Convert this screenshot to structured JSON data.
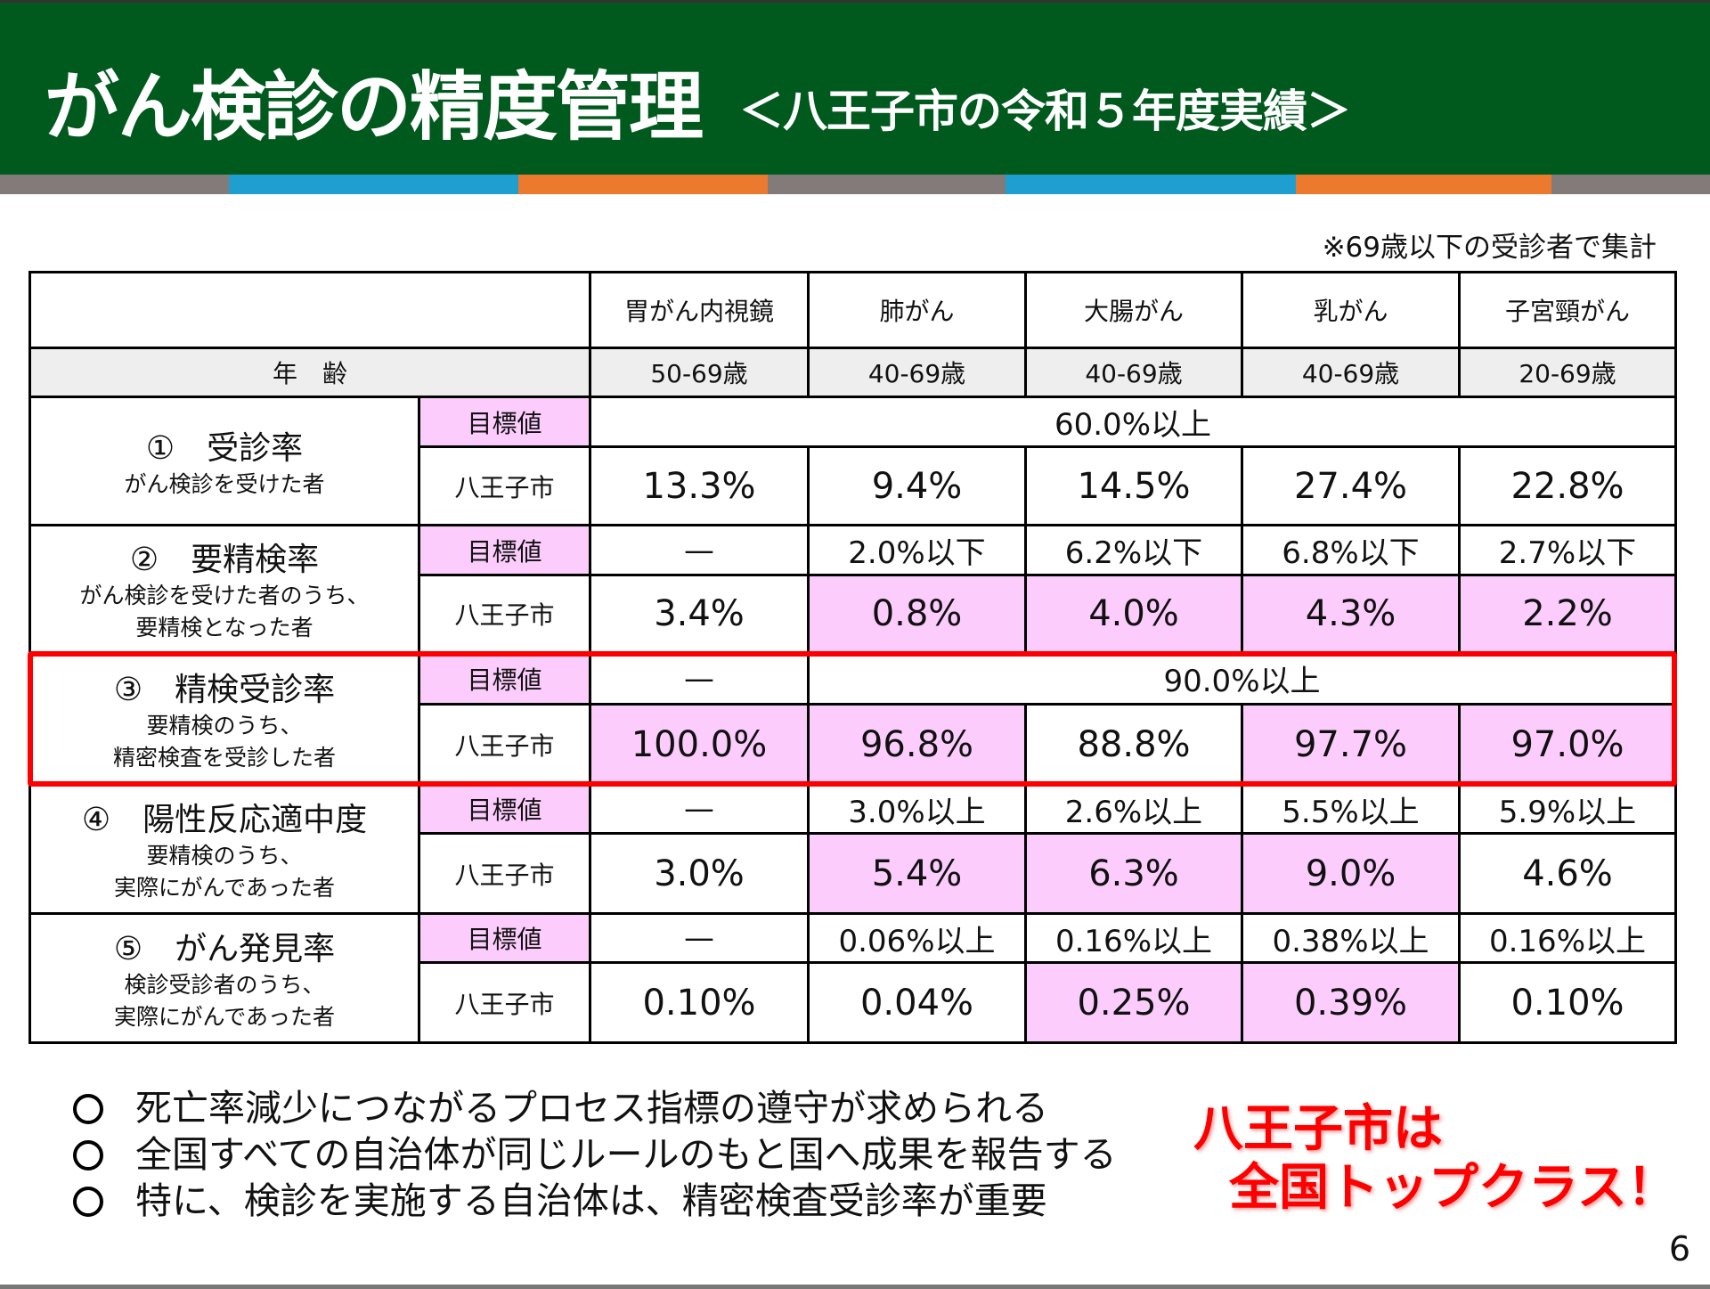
{
  "header": {
    "title": "がん検診の精度管理",
    "subtitle": "＜八王子市の令和５年度実績＞"
  },
  "colors": {
    "green": "#005a1e",
    "gray": "#827b7a",
    "blue": "#1e9fd0",
    "orange": "#ec7a2e",
    "pink": "#fccdfc",
    "red": "#ff0000"
  },
  "note": "※69歳以下の受診者で集計",
  "table": {
    "columns": [
      "胃がん内視鏡",
      "肺がん",
      "大腸がん",
      "乳がん",
      "子宮頸がん"
    ],
    "age_label": "年　齢",
    "ages": [
      "50-69歳",
      "40-69歳",
      "40-69歳",
      "40-69歳",
      "20-69歳"
    ],
    "target_label": "目標値",
    "city_label": "八王子市",
    "metrics": [
      {
        "title": "①　受診率",
        "sub": [
          "がん検診を受けた者"
        ],
        "target_all": "60.0%以上",
        "city": [
          "13.3%",
          "9.4%",
          "14.5%",
          "27.4%",
          "22.8%"
        ]
      },
      {
        "title": "②　要精検率",
        "sub": [
          "がん検診を受けた者のうち、",
          "要精検となった者"
        ],
        "target": [
          "—",
          "2.0%以下",
          "6.2%以下",
          "6.8%以下",
          "2.7%以下"
        ],
        "city": [
          "3.4%",
          "0.8%",
          "4.0%",
          "4.3%",
          "2.2%"
        ]
      },
      {
        "title": "③　精検受診率",
        "sub": [
          "要精検のうち、",
          "精密検査を受診した者"
        ],
        "target_first": "—",
        "target_rest": "90.0%以上",
        "city": [
          "100.0%",
          "96.8%",
          "88.8%",
          "97.7%",
          "97.0%"
        ]
      },
      {
        "title": "④　陽性反応適中度",
        "sub": [
          "要精検のうち、",
          "実際にがんであった者"
        ],
        "target": [
          "—",
          "3.0%以上",
          "2.6%以上",
          "5.5%以上",
          "5.9%以上"
        ],
        "city": [
          "3.0%",
          "5.4%",
          "6.3%",
          "9.0%",
          "4.6%"
        ]
      },
      {
        "title": "⑤　がん発見率",
        "sub": [
          "検診受診者のうち、",
          "実際にがんであった者"
        ],
        "target": [
          "—",
          "0.06%以上",
          "0.16%以上",
          "0.38%以上",
          "0.16%以上"
        ],
        "city": [
          "0.10%",
          "0.04%",
          "0.25%",
          "0.39%",
          "0.10%"
        ]
      }
    ]
  },
  "bullets": [
    "死亡率減少につながるプロセス指標の遵守が求められる",
    "全国すべての自治体が同じルールのもと国へ成果を報告する",
    "特に、検診を実施する自治体は、精密検査受診率が重要"
  ],
  "callout": [
    "八王子市は",
    "全国トップクラス！"
  ],
  "page_number": "6"
}
